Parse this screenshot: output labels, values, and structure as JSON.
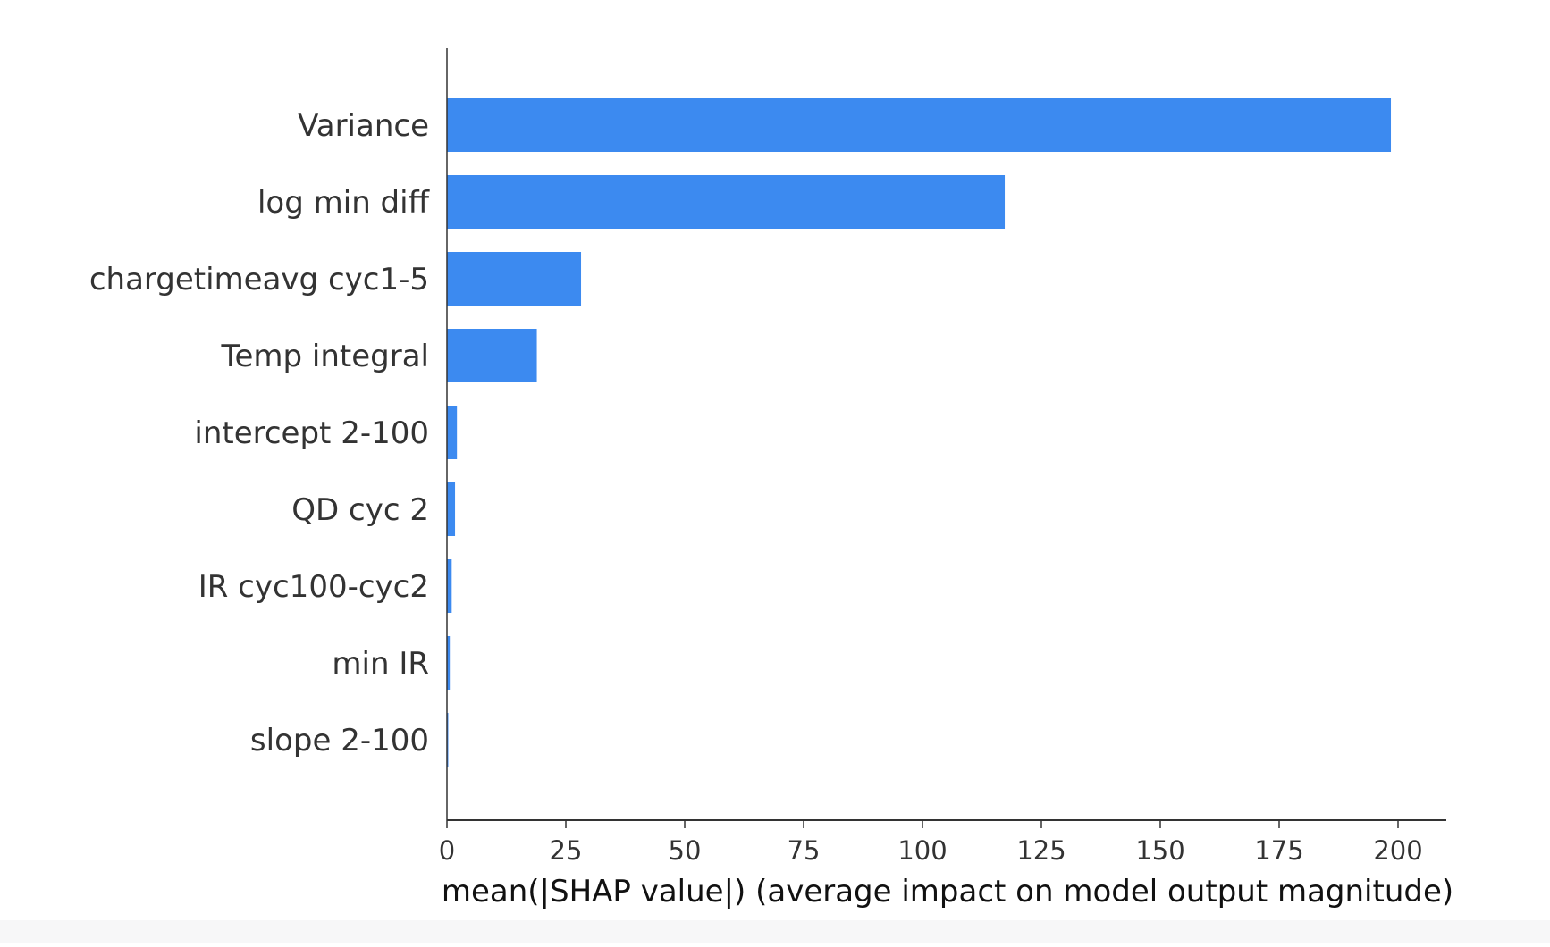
{
  "colors": {
    "bar": "#3c8af0",
    "axis": "#333333",
    "label": "#333333",
    "xlabel": "#111111"
  },
  "chart_data": {
    "type": "bar",
    "orientation": "horizontal",
    "categories": [
      "Variance",
      "log min diff",
      "chargetimeavg cyc1-5",
      "Temp integral",
      "intercept 2-100",
      "QD cyc 2",
      "IR cyc100-cyc2",
      "min IR",
      "slope 2-100"
    ],
    "values": [
      198.5,
      117.3,
      28.2,
      18.9,
      2.1,
      1.7,
      1.0,
      0.6,
      0.2
    ],
    "xlabel": "mean(|SHAP value|) (average impact on model output magnitude)",
    "xlim": [
      0,
      208
    ],
    "xticks": [
      0,
      25,
      50,
      75,
      100,
      125,
      150,
      175,
      200
    ],
    "xtick_labels": [
      "0",
      "25",
      "50",
      "75",
      "100",
      "125",
      "150",
      "175",
      "200"
    ],
    "grid": false,
    "legend": "none"
  }
}
